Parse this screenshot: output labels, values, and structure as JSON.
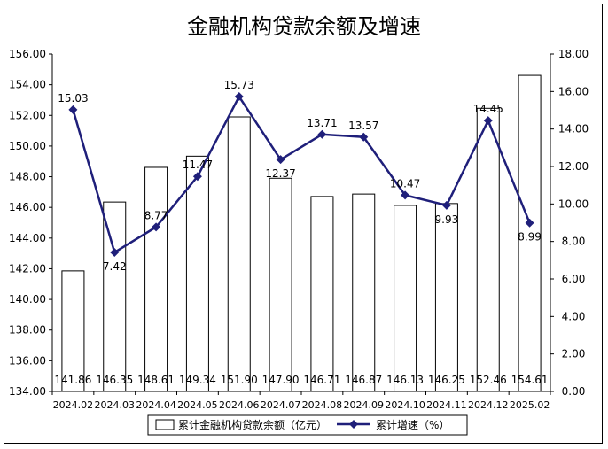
{
  "chart_data": {
    "type": "bar+line",
    "title": "金融机构贷款余额及增速",
    "categories": [
      "2024.02",
      "2024.03",
      "2024.04",
      "2024.05",
      "2024.06",
      "2024.07",
      "2024.08",
      "2024.09",
      "2024.10",
      "2024.11",
      "2024.12",
      "2025.02"
    ],
    "series": [
      {
        "name": "累计金融机构贷款余额（亿元）",
        "type": "bar",
        "axis": "left",
        "values": [
          141.86,
          146.35,
          148.61,
          149.34,
          151.9,
          147.9,
          146.71,
          146.87,
          146.13,
          146.25,
          152.46,
          154.61
        ],
        "labels": [
          "141.86",
          "146.35",
          "148.61",
          "149.34",
          "151.90",
          "147.90",
          "146.71",
          "146.87",
          "146.13",
          "146.25",
          "152.46",
          "154.61"
        ],
        "color": "#ffffff"
      },
      {
        "name": "累计增速（%）",
        "type": "line",
        "axis": "right",
        "values": [
          15.03,
          7.42,
          8.77,
          11.47,
          15.73,
          12.37,
          13.71,
          13.57,
          10.47,
          9.93,
          14.45,
          8.99
        ],
        "labels": [
          "15.03",
          "7.42",
          "8.77",
          "11.47",
          "15.73",
          "12.37",
          "13.71",
          "13.57",
          "10.47",
          "9.93",
          "14.45",
          "8.99"
        ],
        "color": "#1f1f7a"
      }
    ],
    "y_left": {
      "ylim": [
        134,
        156
      ],
      "ticks": [
        "134.00",
        "136.00",
        "138.00",
        "140.00",
        "142.00",
        "144.00",
        "146.00",
        "148.00",
        "150.00",
        "152.00",
        "154.00",
        "156.00"
      ]
    },
    "y_right": {
      "ylim": [
        0,
        18
      ],
      "ticks": [
        "0.00",
        "2.00",
        "4.00",
        "6.00",
        "8.00",
        "10.00",
        "12.00",
        "14.00",
        "16.00",
        "18.00"
      ]
    },
    "grid": false,
    "legend": "bottom"
  }
}
